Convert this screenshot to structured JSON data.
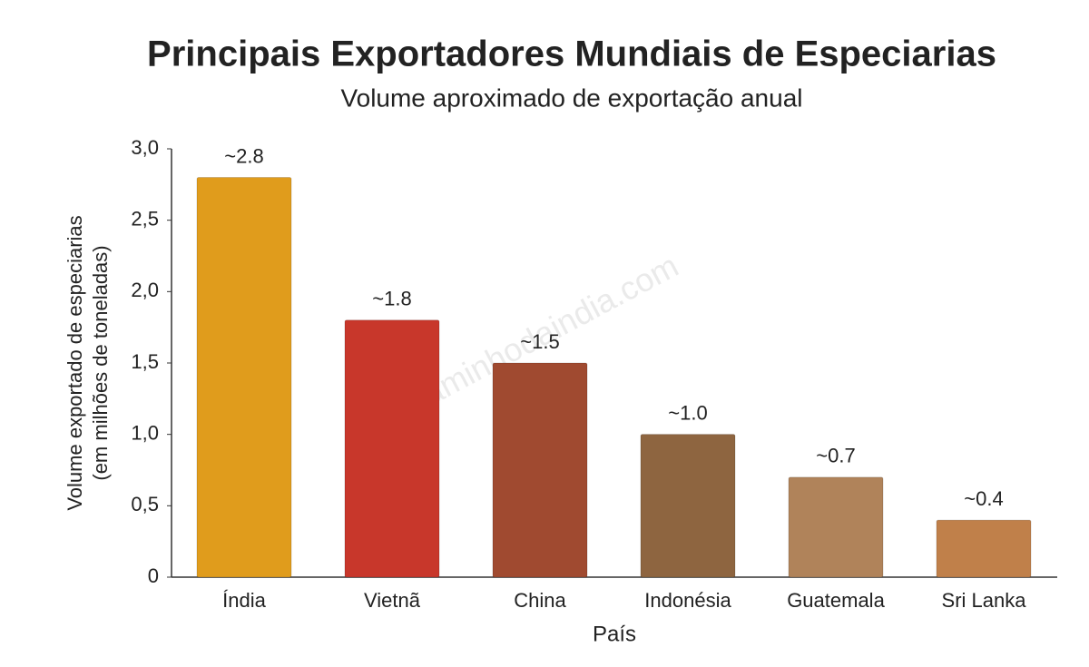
{
  "chart_data": {
    "type": "bar",
    "title": "Principais Exportadores Mundiais de Especiarias",
    "subtitle": "Volume aproximado de exportação anual",
    "xlabel": "País",
    "ylabel": [
      "Volume exportado de especiarias",
      "(em milhões de toneladas)"
    ],
    "watermark": "caminhodaindia.com",
    "categories": [
      "Índia",
      "Vietnã",
      "China",
      "Indonésia",
      "Guatemala",
      "Sri Lanka"
    ],
    "values": [
      2.8,
      1.8,
      1.5,
      1.0,
      0.7,
      0.4
    ],
    "value_labels": [
      "~2.8",
      "~1.8",
      "~1.5",
      "~1.0",
      "~0.7",
      "~0.4"
    ],
    "colors": [
      "#e09c1c",
      "#c8372b",
      "#a04a30",
      "#8e6540",
      "#b0835a",
      "#c0804a"
    ],
    "ylim": [
      0,
      3
    ],
    "yticks": [
      0,
      {
        "value": 0.5,
        "label": "0,5"
      },
      {
        "value": 1,
        "label": "1,0"
      },
      {
        "value": 1.5,
        "label": "1,5"
      },
      {
        "value": 2,
        "label": "2,0"
      },
      {
        "value": 2.5,
        "label": "2,5"
      },
      {
        "value": 3,
        "label": "3,0"
      }
    ],
    "grid": false
  }
}
